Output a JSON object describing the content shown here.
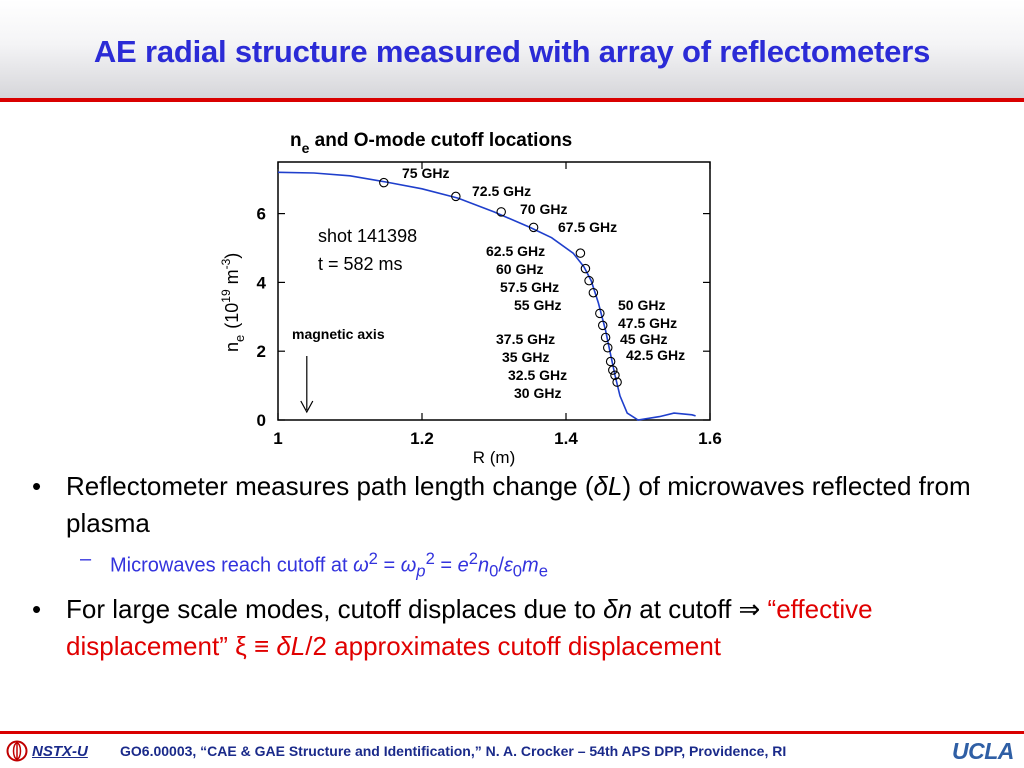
{
  "slide": {
    "title": "AE radial structure measured with array of reflectometers"
  },
  "chart_data": {
    "type": "line",
    "title_n": "n",
    "title_sub": "e",
    "title_rest": " and O-mode cutoff locations",
    "xlabel": "R (m)",
    "ylabel_n": "n",
    "ylabel_sub": "e",
    "ylabel_unit": "(10",
    "ylabel_exp": "19",
    "ylabel_m": " m",
    "ylabel_mexp": "-3",
    "ylabel_close": ")",
    "xlim": [
      1.0,
      1.6
    ],
    "ylim": [
      0,
      7.5
    ],
    "xticks": [
      1.0,
      1.2,
      1.4,
      1.6
    ],
    "xtick_labels": [
      "1",
      "1.2",
      "1.4",
      "1.6"
    ],
    "yticks": [
      0,
      2,
      4,
      6
    ],
    "ytick_labels": [
      "0",
      "2",
      "4",
      "6"
    ],
    "shot_label": "shot 141398",
    "time_label": "t = 582 ms",
    "magnetic_axis_label": "magnetic axis",
    "magnetic_axis_R": 1.04,
    "curve_color": "#1f3fcc",
    "profile": [
      {
        "R": 1.0,
        "n": 7.2
      },
      {
        "R": 1.05,
        "n": 7.18
      },
      {
        "R": 1.1,
        "n": 7.1
      },
      {
        "R": 1.15,
        "n": 6.92
      },
      {
        "R": 1.2,
        "n": 6.72
      },
      {
        "R": 1.25,
        "n": 6.45
      },
      {
        "R": 1.3,
        "n": 6.05
      },
      {
        "R": 1.35,
        "n": 5.6
      },
      {
        "R": 1.38,
        "n": 5.3
      },
      {
        "R": 1.41,
        "n": 4.85
      },
      {
        "R": 1.425,
        "n": 4.45
      },
      {
        "R": 1.435,
        "n": 4.05
      },
      {
        "R": 1.445,
        "n": 3.4
      },
      {
        "R": 1.455,
        "n": 2.6
      },
      {
        "R": 1.462,
        "n": 1.9
      },
      {
        "R": 1.468,
        "n": 1.3
      },
      {
        "R": 1.475,
        "n": 0.7
      },
      {
        "R": 1.485,
        "n": 0.2
      },
      {
        "R": 1.5,
        "n": 0.0
      },
      {
        "R": 1.53,
        "n": 0.1
      },
      {
        "R": 1.55,
        "n": 0.2
      },
      {
        "R": 1.575,
        "n": 0.15
      },
      {
        "R": 1.58,
        "n": 0.12
      }
    ],
    "cutoffs": [
      {
        "label": "75 GHz",
        "R": 1.147,
        "n": 6.9
      },
      {
        "label": "72.5 GHz",
        "R": 1.247,
        "n": 6.5
      },
      {
        "label": "70 GHz",
        "R": 1.31,
        "n": 6.05
      },
      {
        "label": "67.5 GHz",
        "R": 1.355,
        "n": 5.6
      },
      {
        "label": "62.5 GHz",
        "R": 1.42,
        "n": 4.85
      },
      {
        "label": "60 GHz",
        "R": 1.427,
        "n": 4.4
      },
      {
        "label": "57.5 GHz",
        "R": 1.432,
        "n": 4.05
      },
      {
        "label": "55 GHz",
        "R": 1.438,
        "n": 3.7
      },
      {
        "label": "50 GHz",
        "R": 1.447,
        "n": 3.1
      },
      {
        "label": "47.5 GHz",
        "R": 1.451,
        "n": 2.75
      },
      {
        "label": "45 GHz",
        "R": 1.455,
        "n": 2.4
      },
      {
        "label": "42.5 GHz",
        "R": 1.458,
        "n": 2.1
      },
      {
        "label": "37.5 GHz",
        "R": 1.462,
        "n": 1.7
      },
      {
        "label": "35 GHz",
        "R": 1.465,
        "n": 1.45
      },
      {
        "label": "32.5 GHz",
        "R": 1.468,
        "n": 1.3
      },
      {
        "label": "30 GHz",
        "R": 1.471,
        "n": 1.1
      }
    ]
  },
  "bullets": {
    "b1_text_a": "Reflectometer measures path length change (",
    "b1_delta": "δ",
    "b1_L": "L",
    "b1_text_b": ") of microwaves reflected from plasma",
    "sub_text": "Microwaves reach cutoff at ",
    "sub_omega": "ω",
    "sub_2a": "2",
    "sub_eq": " = ",
    "sub_omegap": "ω",
    "sub_p": "p",
    "sub_2b": "2",
    "sub_eq2": " = ",
    "sub_e": "e",
    "sub_2c": "2",
    "sub_n": "n",
    "sub_0a": "0",
    "sub_slash": "/",
    "sub_eps": "ε",
    "sub_0b": "0",
    "sub_m": "m",
    "sub_esub": "e",
    "b2_text_a": "For large scale modes, cutoff displaces due to ",
    "b2_delta": "δ",
    "b2_n": "n",
    "b2_text_b": " at cutoff ⇒ ",
    "b2_red_a": "“effective displacement” ξ ≡  ",
    "b2_red_delta": "δ",
    "b2_red_L": "L",
    "b2_red_b": "/2 approximates cutoff displacement",
    "bullet_char": "•",
    "dash_char": "–"
  },
  "footer": {
    "logo_label": "NSTX-U",
    "citation": "GO6.00003, “CAE & GAE Structure and Identification,” N. A. Crocker – 54th APS DPP, Providence, RI",
    "ucla": "UCLA"
  },
  "colors": {
    "title": "#2b2bd6",
    "rule": "#d90000",
    "sub_bullet": "#3333dd",
    "highlight": "#e00000",
    "footer_text": "#1a2a8a",
    "ucla": "#2f5fa5"
  }
}
